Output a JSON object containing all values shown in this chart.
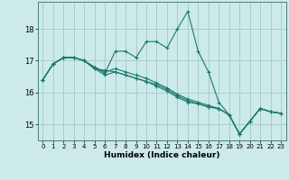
{
  "xlabel": "Humidex (Indice chaleur)",
  "bg_color": "#cceaea",
  "grid_color": "#aacccc",
  "line_color": "#1a7a6a",
  "xlim": [
    -0.5,
    23.5
  ],
  "ylim": [
    14.5,
    18.85
  ],
  "yticks": [
    15,
    16,
    17,
    18
  ],
  "xticks": [
    0,
    1,
    2,
    3,
    4,
    5,
    6,
    7,
    8,
    9,
    10,
    11,
    12,
    13,
    14,
    15,
    16,
    17,
    18,
    19,
    20,
    21,
    22,
    23
  ],
  "lines": [
    {
      "x": [
        0,
        1,
        2,
        3,
        4,
        5,
        6,
        7,
        8,
        9,
        10,
        11,
        12,
        13,
        14,
        15,
        16,
        17,
        18,
        19,
        20,
        21,
        22,
        23
      ],
      "y": [
        16.4,
        16.9,
        17.1,
        17.1,
        17.0,
        16.8,
        16.6,
        17.3,
        17.3,
        17.1,
        17.6,
        17.6,
        17.4,
        18.0,
        18.55,
        17.3,
        16.65,
        15.7,
        15.3,
        14.7,
        15.1,
        15.5,
        15.4,
        15.35
      ]
    },
    {
      "x": [
        0,
        1,
        2,
        3,
        4,
        5,
        6,
        7,
        8,
        9,
        10,
        11,
        12,
        13,
        14,
        15,
        16,
        17,
        18,
        19,
        20,
        21,
        22,
        23
      ],
      "y": [
        16.4,
        16.9,
        17.1,
        17.1,
        17.0,
        16.75,
        16.55,
        16.65,
        16.55,
        16.45,
        16.35,
        16.2,
        16.05,
        15.85,
        15.7,
        15.65,
        15.55,
        15.5,
        15.3,
        14.7,
        15.1,
        15.5,
        15.4,
        15.35
      ]
    },
    {
      "x": [
        0,
        1,
        2,
        3,
        4,
        5,
        6,
        7,
        8,
        9,
        10,
        11,
        12,
        13,
        14,
        15,
        16,
        17,
        18,
        19,
        20,
        21,
        22,
        23
      ],
      "y": [
        16.4,
        16.9,
        17.1,
        17.1,
        17.0,
        16.75,
        16.7,
        16.65,
        16.55,
        16.45,
        16.35,
        16.25,
        16.1,
        15.9,
        15.75,
        15.65,
        15.55,
        15.5,
        15.3,
        14.7,
        15.1,
        15.5,
        15.4,
        15.35
      ]
    },
    {
      "x": [
        0,
        1,
        2,
        3,
        4,
        5,
        6,
        7,
        8,
        9,
        10,
        11,
        12,
        13,
        14,
        15,
        16,
        17,
        18,
        19,
        20,
        21,
        22,
        23
      ],
      "y": [
        16.4,
        16.9,
        17.1,
        17.1,
        17.0,
        16.8,
        16.65,
        16.75,
        16.65,
        16.55,
        16.45,
        16.3,
        16.15,
        15.95,
        15.8,
        15.7,
        15.6,
        15.5,
        15.3,
        14.7,
        15.1,
        15.5,
        15.4,
        15.35
      ]
    }
  ]
}
